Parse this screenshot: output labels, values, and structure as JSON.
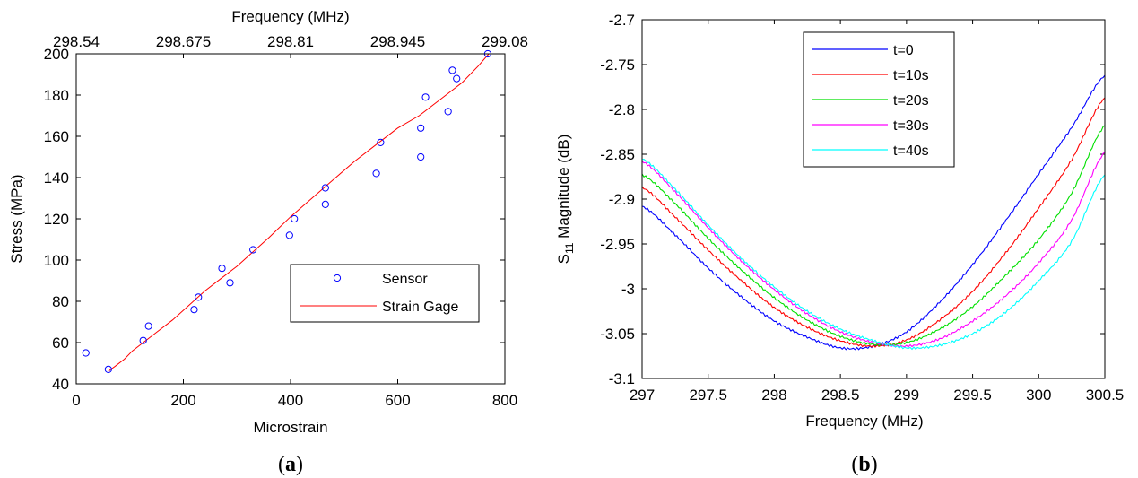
{
  "chart_data": [
    {
      "type": "scatter",
      "panel_label": "(a)",
      "xlabel": "Microstrain",
      "ylabel": "Stress (MPa)",
      "top_xlabel": "Frequency (MHz)",
      "xlim": [
        0,
        800
      ],
      "ylim": [
        40,
        200
      ],
      "xticks": [
        "0",
        "200",
        "400",
        "600",
        "800"
      ],
      "yticks": [
        "40",
        "60",
        "80",
        "100",
        "120",
        "140",
        "160",
        "180",
        "200"
      ],
      "top_ticks": [
        "298.54",
        "298.675",
        "298.81",
        "298.945",
        "299.08"
      ],
      "legend_position": "lower-right",
      "series": [
        {
          "name": "Sensor",
          "style": "circle-marker",
          "color": "#0000ff",
          "x": [
            18,
            60,
            125,
            135,
            220,
            228,
            272,
            287,
            330,
            398,
            407,
            465,
            465,
            515,
            560,
            568,
            643,
            643,
            652,
            694,
            702,
            710,
            768
          ],
          "y": [
            55,
            47,
            61,
            68,
            76,
            82,
            96,
            89,
            105,
            112,
            120,
            127,
            135,
            91,
            142,
            157,
            150,
            164,
            179,
            172,
            192,
            188,
            200
          ]
        },
        {
          "name": "Strain Gage",
          "style": "line",
          "color": "#ff0000",
          "x": [
            60,
            75,
            90,
            105,
            125,
            150,
            180,
            210,
            240,
            270,
            300,
            330,
            360,
            400,
            440,
            480,
            520,
            560,
            600,
            640,
            680,
            720,
            750,
            770
          ],
          "y": [
            46,
            49,
            52,
            56,
            60,
            65,
            71,
            78,
            85,
            91,
            97,
            104,
            111,
            121,
            130,
            139,
            148,
            156,
            164,
            170,
            178,
            186,
            194,
            200
          ]
        }
      ]
    },
    {
      "type": "line",
      "panel_label": "(b)",
      "xlabel": "Frequency (MHz)",
      "ylabel": "S11 Magnitude (dB)",
      "ylabel_parts": {
        "base": "S",
        "sub": "11",
        "rest": " Magnitude (dB)"
      },
      "xlim": [
        297,
        300.5
      ],
      "ylim": [
        -3.1,
        -2.7
      ],
      "xticks": [
        "297",
        "297.5",
        "298",
        "298.5",
        "299",
        "299.5",
        "300",
        "300.5"
      ],
      "yticks": [
        "-3.1",
        "-3.05",
        "-3",
        "-2.95",
        "-2.9",
        "-2.85",
        "-2.8",
        "-2.75",
        "-2.7"
      ],
      "legend_position": "top-left",
      "series": [
        {
          "name": "t=0",
          "color": "#0000ff",
          "x": [
            297,
            297.25,
            297.5,
            297.75,
            298,
            298.25,
            298.5,
            298.75,
            299,
            299.25,
            299.5,
            299.75,
            300,
            300.25,
            300.5
          ],
          "y": [
            -2.908,
            -2.94,
            -2.977,
            -3.009,
            -3.036,
            -3.054,
            -3.066,
            -3.064,
            -3.048,
            -3.015,
            -2.973,
            -2.924,
            -2.872,
            -2.82,
            -2.762
          ]
        },
        {
          "name": "t=10s",
          "color": "#ff0000",
          "x": [
            297,
            297.25,
            297.5,
            297.75,
            298,
            298.25,
            298.5,
            298.75,
            299,
            299.25,
            299.5,
            299.75,
            300,
            300.25,
            300.5
          ],
          "y": [
            -2.887,
            -2.92,
            -2.957,
            -2.991,
            -3.021,
            -3.043,
            -3.058,
            -3.064,
            -3.057,
            -3.035,
            -3.003,
            -2.96,
            -2.91,
            -2.856,
            -2.787
          ]
        },
        {
          "name": "t=20s",
          "color": "#00e000",
          "x": [
            297,
            297.25,
            297.5,
            297.75,
            298,
            298.25,
            298.5,
            298.75,
            299,
            299.25,
            299.5,
            299.75,
            300,
            300.25,
            300.5
          ],
          "y": [
            -2.873,
            -2.905,
            -2.944,
            -2.979,
            -3.01,
            -3.035,
            -3.053,
            -3.062,
            -3.06,
            -3.045,
            -3.02,
            -2.985,
            -2.945,
            -2.893,
            -2.818
          ]
        },
        {
          "name": "t=30s",
          "color": "#ff00ff",
          "x": [
            297,
            297.25,
            297.5,
            297.75,
            298,
            298.25,
            298.5,
            298.75,
            299,
            299.25,
            299.5,
            299.75,
            300,
            300.25,
            300.5
          ],
          "y": [
            -2.858,
            -2.892,
            -2.932,
            -2.969,
            -3.001,
            -3.028,
            -3.048,
            -3.06,
            -3.064,
            -3.056,
            -3.036,
            -3.008,
            -2.971,
            -2.923,
            -2.848
          ]
        },
        {
          "name": "t=40s",
          "color": "#00ffff",
          "x": [
            297,
            297.25,
            297.5,
            297.75,
            298,
            298.25,
            298.5,
            298.75,
            299,
            299.25,
            299.5,
            299.75,
            300,
            300.25,
            300.5
          ],
          "y": [
            -2.855,
            -2.889,
            -2.929,
            -2.966,
            -2.998,
            -3.025,
            -3.045,
            -3.058,
            -3.066,
            -3.063,
            -3.05,
            -3.026,
            -2.991,
            -2.947,
            -2.873
          ]
        }
      ]
    }
  ]
}
